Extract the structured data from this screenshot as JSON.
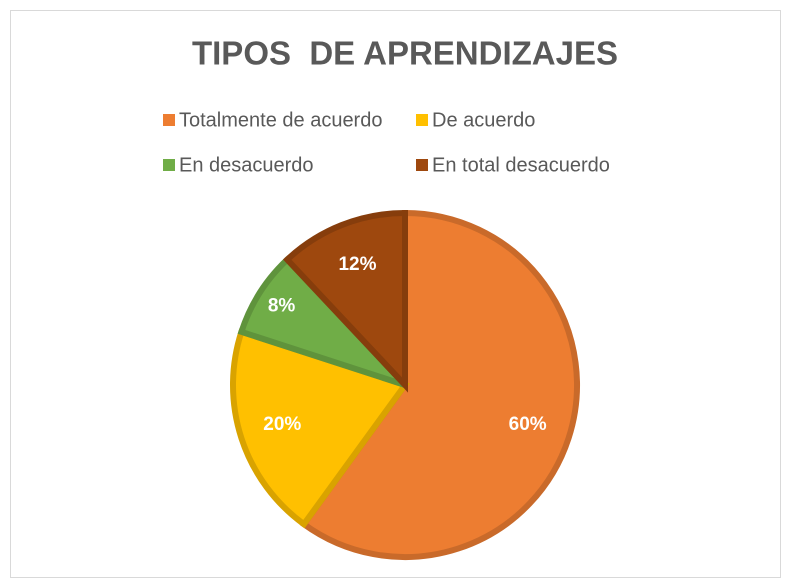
{
  "chart_data": {
    "type": "pie",
    "title": "TIPOS  DE APRENDIZAJES",
    "categories": [
      "Totalmente de acuerdo",
      "De acuerdo",
      "En desacuerdo",
      "En total desacuerdo"
    ],
    "values": [
      60,
      20,
      8,
      12
    ],
    "value_labels": [
      "60%",
      "20%",
      "8%",
      "12%"
    ],
    "colors": [
      "#ED7D31",
      "#FFC000",
      "#70AD47",
      "#9E480E"
    ],
    "legend": "top"
  }
}
